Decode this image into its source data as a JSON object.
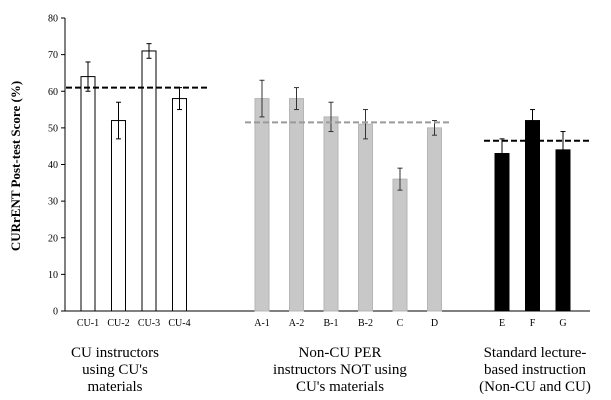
{
  "chart_data": {
    "type": "bar",
    "ylabel": "CURrENT Post-test Score (%)",
    "ylim": [
      0,
      80
    ],
    "yticks": [
      0,
      10,
      20,
      30,
      40,
      50,
      60,
      70,
      80
    ],
    "grid": false,
    "groups": [
      {
        "label": "CU instructors\nusing CU's\nmaterials",
        "color": "#ffffff",
        "mean_line_color": "#000000",
        "mean": 61,
        "bars": [
          {
            "category": "CU-1",
            "value": 64,
            "error": 4
          },
          {
            "category": "CU-2",
            "value": 52,
            "error": 5
          },
          {
            "category": "CU-3",
            "value": 71,
            "error": 2
          },
          {
            "category": "CU-4",
            "value": 58,
            "error": 3
          }
        ]
      },
      {
        "label": "Non-CU PER\ninstructors NOT using\nCU's materials",
        "color": "#c8c8c8",
        "mean_line_color": "#9a9a9a",
        "mean": 51.5,
        "bars": [
          {
            "category": "A-1",
            "value": 58,
            "error": 5
          },
          {
            "category": "A-2",
            "value": 58,
            "error": 3
          },
          {
            "category": "B-1",
            "value": 53,
            "error": 4
          },
          {
            "category": "B-2",
            "value": 51,
            "error": 4
          },
          {
            "category": "C",
            "value": 36,
            "error": 3
          },
          {
            "category": "D",
            "value": 50,
            "error": 2
          }
        ]
      },
      {
        "label": "Standard lecture-\nbased instruction\n(Non-CU and CU)",
        "color": "#000000",
        "mean_line_color": "#000000",
        "mean": 46.5,
        "bars": [
          {
            "category": "E",
            "value": 43,
            "error": 4
          },
          {
            "category": "F",
            "value": 52,
            "error": 3
          },
          {
            "category": "G",
            "value": 44,
            "error": 5
          }
        ]
      }
    ]
  }
}
